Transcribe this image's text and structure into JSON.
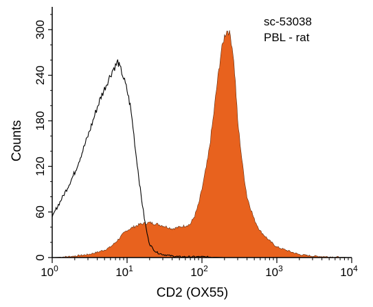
{
  "chart_data": {
    "type": "area",
    "title": "",
    "xlabel": "CD2 (OX55)",
    "ylabel": "Counts",
    "annotations": [
      "sc-53038",
      "PBL - rat"
    ],
    "x_scale": "log",
    "xlim": [
      1,
      10000
    ],
    "ylim": [
      0,
      330
    ],
    "x_ticks": [
      {
        "base": "10",
        "exp": "0"
      },
      {
        "base": "10",
        "exp": "1"
      },
      {
        "base": "10",
        "exp": "2"
      },
      {
        "base": "10",
        "exp": "3"
      },
      {
        "base": "10",
        "exp": "4"
      }
    ],
    "y_ticks": [
      "0",
      "60",
      "120",
      "180",
      "240",
      "300"
    ],
    "y_tick_values": [
      0,
      60,
      120,
      180,
      240,
      300
    ],
    "colors": {
      "filled": "#e8621e",
      "outline": "#000000",
      "axis": "#000000"
    },
    "series": [
      {
        "style": "outline",
        "x": [
          1,
          1.1,
          1.3,
          1.6,
          2,
          2.5,
          3,
          3.5,
          4,
          4.5,
          5,
          5.5,
          6,
          6.5,
          7,
          7.5,
          8,
          8.5,
          9,
          10,
          11,
          12,
          13,
          14,
          15,
          16,
          17,
          18,
          19,
          20,
          22,
          24,
          26,
          28,
          30,
          35,
          40,
          50,
          70,
          100,
          200,
          500,
          1000,
          3000,
          10000
        ],
        "y": [
          52,
          62,
          75,
          92,
          112,
          138,
          160,
          180,
          198,
          212,
          222,
          232,
          240,
          248,
          252,
          258,
          250,
          244,
          236,
          220,
          200,
          172,
          140,
          115,
          90,
          70,
          52,
          38,
          26,
          18,
          12,
          8,
          6,
          5,
          4,
          3,
          2,
          1,
          1,
          1,
          0,
          0,
          0,
          0,
          0
        ]
      },
      {
        "style": "filled",
        "x": [
          1,
          1.5,
          2,
          3,
          4,
          5,
          6,
          7,
          8,
          9,
          10,
          12,
          15,
          20,
          25,
          30,
          35,
          40,
          50,
          60,
          70,
          80,
          90,
          100,
          120,
          140,
          160,
          180,
          200,
          220,
          240,
          260,
          280,
          300,
          350,
          400,
          500,
          600,
          700,
          800,
          1000,
          1500,
          2000,
          3000,
          5000,
          10000
        ],
        "y": [
          0,
          1,
          2,
          4,
          7,
          10,
          14,
          20,
          26,
          32,
          36,
          40,
          44,
          46,
          44,
          42,
          40,
          38,
          40,
          42,
          44,
          55,
          70,
          90,
          130,
          180,
          230,
          270,
          292,
          300,
          292,
          270,
          230,
          180,
          120,
          80,
          50,
          35,
          28,
          22,
          14,
          8,
          4,
          2,
          1,
          0
        ]
      }
    ]
  }
}
